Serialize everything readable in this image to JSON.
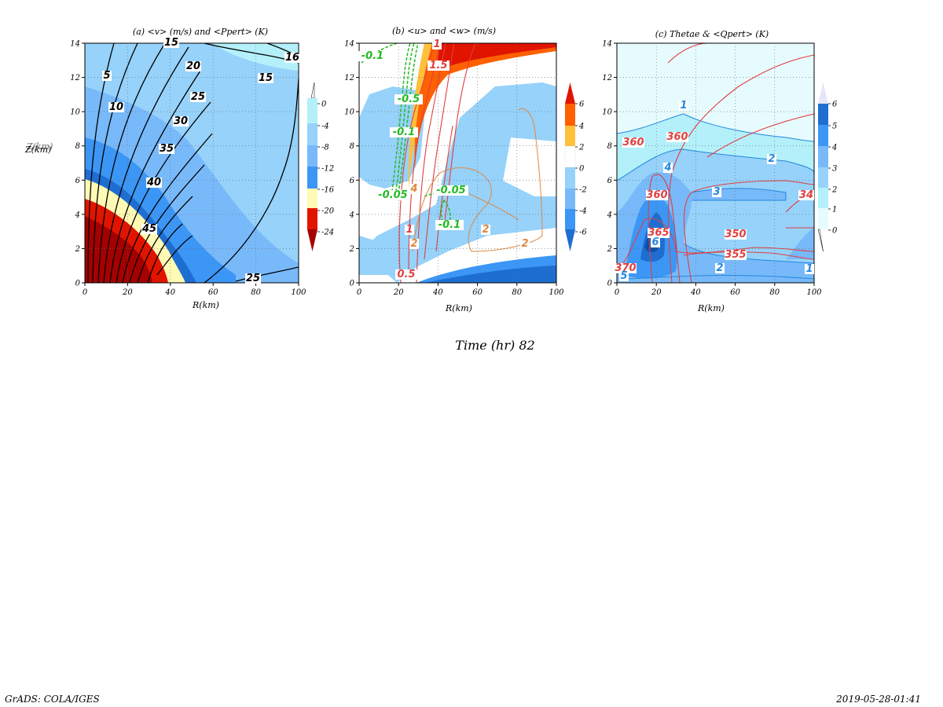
{
  "time_label": "Time (hr) 82",
  "footer_left": "GrADS: COLA/IGES",
  "footer_right": "2019-05-28-01:41",
  "colors": {
    "blues": [
      "#e6fbfe",
      "#b4f0fa",
      "#96d2fa",
      "#78b9fa",
      "#3c96f5",
      "#1e6ed2",
      "#0a50aa"
    ],
    "warm": [
      "#fffab4",
      "#ffc03c",
      "#ff6000",
      "#e11400",
      "#a50000"
    ],
    "contour_black": "#000000",
    "contour_red": "#e04040",
    "contour_green": "#22bb22",
    "contour_orange": "#e08840",
    "contour_blue": "#2288dd"
  },
  "chart_data": [
    {
      "type": "heatmap",
      "panel": "a",
      "title": "(a) <v> (m/s) and <Ppert> (K)",
      "xlabel": "R(km)",
      "ylabel": "Z(km)",
      "xlim": [
        0,
        100
      ],
      "ylim": [
        0,
        14
      ],
      "xticks": [
        "0",
        "20",
        "40",
        "60",
        "80",
        "100"
      ],
      "yticks": [
        "0",
        "2",
        "4",
        "6",
        "8",
        "10",
        "12",
        "14"
      ],
      "grid": true,
      "shaded_field": "Ppert",
      "colorbar_levels": [
        "0",
        "-4",
        "-8",
        "-12",
        "-16",
        "-20",
        "-24"
      ],
      "contour_field": "v",
      "contour_labels": [
        "5",
        "10",
        "15",
        "20",
        "25",
        "30",
        "35",
        "40",
        "45",
        "25",
        "15",
        "16"
      ]
    },
    {
      "type": "heatmap",
      "panel": "b",
      "title": "(b) <u> and <w> (m/s)",
      "xlabel": "R(km)",
      "ylabel": "",
      "xlim": [
        0,
        100
      ],
      "ylim": [
        0,
        14
      ],
      "xticks": [
        "0",
        "20",
        "40",
        "60",
        "80",
        "100"
      ],
      "yticks": [
        "0",
        "2",
        "4",
        "6",
        "8",
        "10",
        "12",
        "14"
      ],
      "grid": true,
      "shaded_field": "u",
      "colorbar_levels": [
        "6",
        "4",
        "2",
        "0",
        "-2",
        "-4",
        "-6"
      ],
      "contour_field": "w",
      "contour_labels": [
        "-0.1",
        "-0.5",
        "-0.1",
        "1.5",
        "1",
        "-0.05",
        "4",
        "-0.05",
        "-0.1",
        "1",
        "2",
        "2",
        "2",
        "0.5"
      ]
    },
    {
      "type": "heatmap",
      "panel": "c",
      "title": "(c) Thetae & <Qpert> (K)",
      "xlabel": "R(km)",
      "ylabel": "",
      "xlim": [
        0,
        100
      ],
      "ylim": [
        0,
        14
      ],
      "xticks": [
        "0",
        "20",
        "40",
        "60",
        "80",
        "100"
      ],
      "yticks": [
        "0",
        "2",
        "4",
        "6",
        "8",
        "10",
        "12",
        "14"
      ],
      "grid": true,
      "shaded_field": "Qpert",
      "colorbar_levels": [
        "6",
        "5",
        "4",
        "3",
        "2",
        "1",
        "0"
      ],
      "contour_field": "Thetae",
      "contour_labels": [
        "360",
        "360",
        "360",
        "365",
        "350",
        "355",
        "370",
        "34",
        "1",
        "2",
        "4",
        "3",
        "2",
        "1",
        "5",
        "6"
      ]
    }
  ]
}
